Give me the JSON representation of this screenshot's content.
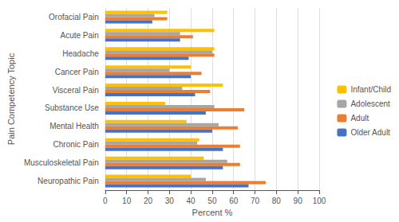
{
  "chart_data": {
    "type": "bar",
    "orientation": "horizontal",
    "categories": [
      "Orofacial Pain",
      "Acute Pain",
      "Headache",
      "Cancer Pain",
      "Visceral Pain",
      "Substance Use",
      "Mental Health",
      "Chronic Pain",
      "Musculoskeletal Pain",
      "Neuropathic Pain"
    ],
    "series": [
      {
        "name": "Infant/Child",
        "color": "#FFC000",
        "values": [
          29,
          51,
          51,
          40,
          55,
          28,
          38,
          44,
          46,
          40
        ]
      },
      {
        "name": "Adolescent",
        "color": "#A6A6A6",
        "values": [
          23,
          35,
          50,
          30,
          36,
          51,
          53,
          43,
          57,
          47
        ]
      },
      {
        "name": "Adult",
        "color": "#ED7D31",
        "values": [
          29,
          41,
          51,
          45,
          49,
          65,
          62,
          63,
          63,
          75
        ]
      },
      {
        "name": "Older Adult",
        "color": "#4472C4",
        "values": [
          22,
          35,
          39,
          40,
          42,
          47,
          50,
          55,
          55,
          67
        ]
      }
    ],
    "xlabel": "Percent %",
    "ylabel": "Pain Competency Topic",
    "xlim": [
      0,
      100
    ],
    "xticks": [
      0,
      10,
      20,
      30,
      40,
      50,
      60,
      70,
      80,
      90,
      100
    ],
    "grid": true,
    "legend": "right"
  }
}
